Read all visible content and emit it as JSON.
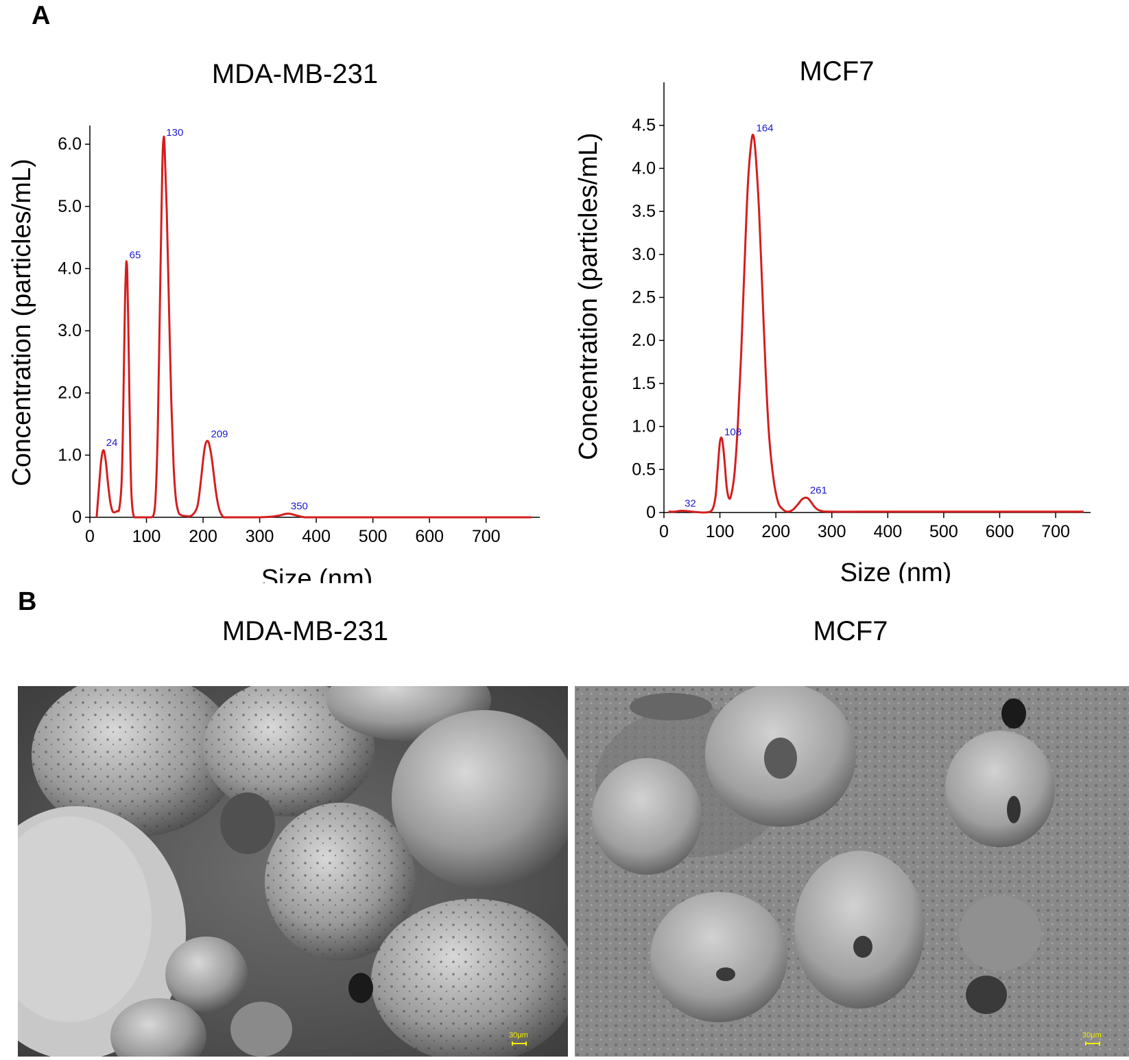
{
  "panels": {
    "a_label": "A",
    "b_label": "B"
  },
  "chart_data": [
    {
      "type": "line",
      "title": "MDA-MB-231",
      "xlabel": "Size (nm)",
      "ylabel": "Concentration (particles/mL)",
      "xlim": [
        0,
        790
      ],
      "ylim": [
        0,
        6.3
      ],
      "xticks": [
        0,
        100,
        200,
        300,
        400,
        500,
        600,
        700
      ],
      "xtick_labels": [
        "0",
        "100",
        "200",
        "300",
        "400",
        "500",
        "600",
        "700"
      ],
      "yticks": [
        0,
        1,
        2,
        3,
        4,
        5,
        6
      ],
      "ytick_labels": [
        "0",
        "1.0",
        "2.0",
        "3.0",
        "4.0",
        "5.0",
        "6.0"
      ],
      "line_color": "#d41e1e",
      "label_color": "#1a1ad0",
      "peaks": [
        {
          "label": "24",
          "x": 24,
          "y": 1.08
        },
        {
          "label": "65",
          "x": 65,
          "y": 4.1
        },
        {
          "label": "130",
          "x": 130,
          "y": 6.07
        },
        {
          "label": "209",
          "x": 209,
          "y": 1.22
        },
        {
          "label": "350",
          "x": 350,
          "y": 0.06
        }
      ],
      "x": [
        12,
        16,
        20,
        24,
        28,
        32,
        36,
        40,
        44,
        48,
        52,
        56,
        58,
        60,
        62,
        64,
        65,
        66,
        68,
        70,
        72,
        74,
        78,
        84,
        90,
        100,
        108,
        112,
        116,
        120,
        124,
        128,
        130,
        132,
        136,
        140,
        144,
        148,
        152,
        156,
        160,
        170,
        180,
        190,
        196,
        200,
        204,
        209,
        214,
        218,
        222,
        226,
        230,
        236,
        240,
        260,
        300,
        320,
        335,
        350,
        365,
        380,
        400,
        500,
        600,
        700,
        780
      ],
      "y": [
        0.0,
        0.47,
        0.91,
        1.08,
        0.91,
        0.55,
        0.25,
        0.1,
        0.08,
        0.1,
        0.14,
        0.54,
        1.23,
        2.32,
        3.44,
        4.04,
        4.1,
        3.95,
        3.07,
        1.85,
        0.85,
        0.28,
        0.0,
        0.0,
        0.0,
        0.0,
        0.0,
        0.02,
        0.3,
        1.4,
        3.53,
        5.62,
        6.07,
        5.98,
        4.89,
        3.32,
        1.84,
        0.83,
        0.3,
        0.1,
        0.04,
        0.02,
        0.03,
        0.18,
        0.58,
        0.92,
        1.17,
        1.22,
        1.03,
        0.76,
        0.46,
        0.23,
        0.09,
        0.0,
        0.0,
        0.0,
        0.0,
        0.01,
        0.03,
        0.06,
        0.03,
        0.0,
        0.0,
        0.0,
        0.0,
        0.0,
        0.0
      ]
    },
    {
      "type": "line",
      "title": "MCF7",
      "xlabel": "Size (nm)",
      "ylabel": "Concentration (particles/mL)",
      "xlim": [
        0,
        760
      ],
      "ylim": [
        0,
        5.0
      ],
      "xticks": [
        0,
        100,
        200,
        300,
        400,
        500,
        600,
        700
      ],
      "xtick_labels": [
        "0",
        "100",
        "200",
        "300",
        "400",
        "500",
        "600",
        "700"
      ],
      "yticks": [
        0,
        0.5,
        1.0,
        1.5,
        2.0,
        2.5,
        3.0,
        3.5,
        4.0,
        4.5
      ],
      "ytick_labels": [
        "0",
        "0.5",
        "1.0",
        "1.5",
        "2.0",
        "2.5",
        "3.0",
        "3.5",
        "4.0",
        "4.5"
      ],
      "line_color": "#d41e1e",
      "label_color": "#1a1ad0",
      "peaks": [
        {
          "label": "32",
          "x": 32,
          "y": 0.02
        },
        {
          "label": "108",
          "x": 103,
          "y": 0.85
        },
        {
          "label": "164",
          "x": 160,
          "y": 4.38
        },
        {
          "label": "261",
          "x": 256,
          "y": 0.17
        }
      ],
      "x": [
        8,
        20,
        32,
        50,
        70,
        85,
        92,
        96,
        100,
        104,
        108,
        112,
        116,
        120,
        126,
        132,
        138,
        144,
        150,
        156,
        160,
        164,
        170,
        176,
        182,
        188,
        196,
        204,
        212,
        220,
        230,
        240,
        248,
        256,
        262,
        270,
        280,
        300,
        400,
        500,
        600,
        700,
        750
      ],
      "y": [
        0.01,
        0.01,
        0.02,
        0.01,
        0.0,
        0.02,
        0.18,
        0.5,
        0.82,
        0.85,
        0.62,
        0.3,
        0.17,
        0.2,
        0.45,
        1.02,
        1.85,
        2.88,
        3.82,
        4.3,
        4.38,
        4.15,
        3.5,
        2.55,
        1.6,
        0.88,
        0.38,
        0.12,
        0.04,
        0.01,
        0.03,
        0.1,
        0.16,
        0.17,
        0.13,
        0.06,
        0.02,
        0.01,
        0.01,
        0.01,
        0.01,
        0.01,
        0.01
      ]
    }
  ],
  "sem_images": [
    {
      "title": "MDA-MB-231",
      "scale_label": "30μm"
    },
    {
      "title": "MCF7",
      "scale_label": "30μm"
    }
  ]
}
